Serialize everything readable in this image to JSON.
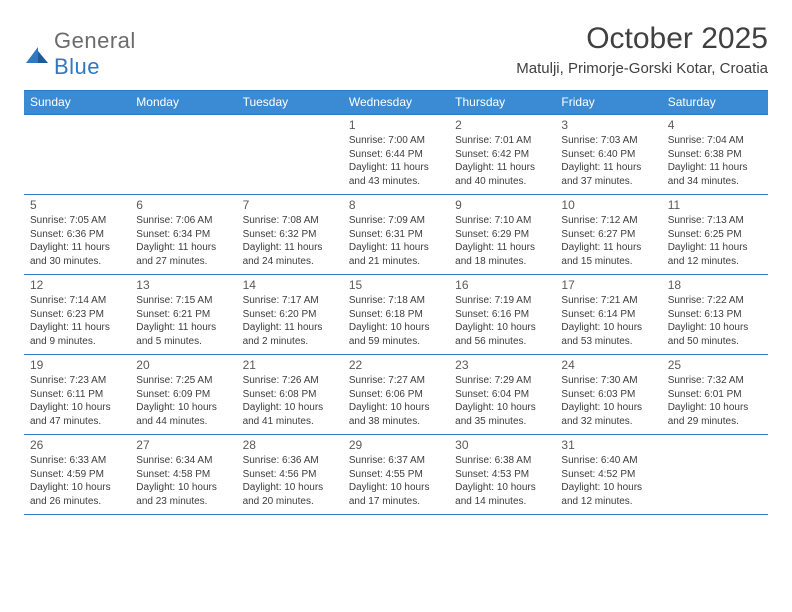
{
  "logo": {
    "text1": "General",
    "text2": "Blue"
  },
  "title": "October 2025",
  "subtitle": "Matulji, Primorje-Gorski Kotar, Croatia",
  "colors": {
    "header_bg": "#3b8bd4",
    "rule": "#2f78c2",
    "logo_gray": "#6b6b6b",
    "logo_blue": "#2f78c2",
    "text_dark": "#404040",
    "cell_text": "#3d3d3d"
  },
  "weekdays": [
    "Sunday",
    "Monday",
    "Tuesday",
    "Wednesday",
    "Thursday",
    "Friday",
    "Saturday"
  ],
  "weeks": [
    [
      {
        "day": "",
        "sunrise": "",
        "sunset": "",
        "daylight": ""
      },
      {
        "day": "",
        "sunrise": "",
        "sunset": "",
        "daylight": ""
      },
      {
        "day": "",
        "sunrise": "",
        "sunset": "",
        "daylight": ""
      },
      {
        "day": "1",
        "sunrise": "Sunrise: 7:00 AM",
        "sunset": "Sunset: 6:44 PM",
        "daylight": "Daylight: 11 hours and 43 minutes."
      },
      {
        "day": "2",
        "sunrise": "Sunrise: 7:01 AM",
        "sunset": "Sunset: 6:42 PM",
        "daylight": "Daylight: 11 hours and 40 minutes."
      },
      {
        "day": "3",
        "sunrise": "Sunrise: 7:03 AM",
        "sunset": "Sunset: 6:40 PM",
        "daylight": "Daylight: 11 hours and 37 minutes."
      },
      {
        "day": "4",
        "sunrise": "Sunrise: 7:04 AM",
        "sunset": "Sunset: 6:38 PM",
        "daylight": "Daylight: 11 hours and 34 minutes."
      }
    ],
    [
      {
        "day": "5",
        "sunrise": "Sunrise: 7:05 AM",
        "sunset": "Sunset: 6:36 PM",
        "daylight": "Daylight: 11 hours and 30 minutes."
      },
      {
        "day": "6",
        "sunrise": "Sunrise: 7:06 AM",
        "sunset": "Sunset: 6:34 PM",
        "daylight": "Daylight: 11 hours and 27 minutes."
      },
      {
        "day": "7",
        "sunrise": "Sunrise: 7:08 AM",
        "sunset": "Sunset: 6:32 PM",
        "daylight": "Daylight: 11 hours and 24 minutes."
      },
      {
        "day": "8",
        "sunrise": "Sunrise: 7:09 AM",
        "sunset": "Sunset: 6:31 PM",
        "daylight": "Daylight: 11 hours and 21 minutes."
      },
      {
        "day": "9",
        "sunrise": "Sunrise: 7:10 AM",
        "sunset": "Sunset: 6:29 PM",
        "daylight": "Daylight: 11 hours and 18 minutes."
      },
      {
        "day": "10",
        "sunrise": "Sunrise: 7:12 AM",
        "sunset": "Sunset: 6:27 PM",
        "daylight": "Daylight: 11 hours and 15 minutes."
      },
      {
        "day": "11",
        "sunrise": "Sunrise: 7:13 AM",
        "sunset": "Sunset: 6:25 PM",
        "daylight": "Daylight: 11 hours and 12 minutes."
      }
    ],
    [
      {
        "day": "12",
        "sunrise": "Sunrise: 7:14 AM",
        "sunset": "Sunset: 6:23 PM",
        "daylight": "Daylight: 11 hours and 9 minutes."
      },
      {
        "day": "13",
        "sunrise": "Sunrise: 7:15 AM",
        "sunset": "Sunset: 6:21 PM",
        "daylight": "Daylight: 11 hours and 5 minutes."
      },
      {
        "day": "14",
        "sunrise": "Sunrise: 7:17 AM",
        "sunset": "Sunset: 6:20 PM",
        "daylight": "Daylight: 11 hours and 2 minutes."
      },
      {
        "day": "15",
        "sunrise": "Sunrise: 7:18 AM",
        "sunset": "Sunset: 6:18 PM",
        "daylight": "Daylight: 10 hours and 59 minutes."
      },
      {
        "day": "16",
        "sunrise": "Sunrise: 7:19 AM",
        "sunset": "Sunset: 6:16 PM",
        "daylight": "Daylight: 10 hours and 56 minutes."
      },
      {
        "day": "17",
        "sunrise": "Sunrise: 7:21 AM",
        "sunset": "Sunset: 6:14 PM",
        "daylight": "Daylight: 10 hours and 53 minutes."
      },
      {
        "day": "18",
        "sunrise": "Sunrise: 7:22 AM",
        "sunset": "Sunset: 6:13 PM",
        "daylight": "Daylight: 10 hours and 50 minutes."
      }
    ],
    [
      {
        "day": "19",
        "sunrise": "Sunrise: 7:23 AM",
        "sunset": "Sunset: 6:11 PM",
        "daylight": "Daylight: 10 hours and 47 minutes."
      },
      {
        "day": "20",
        "sunrise": "Sunrise: 7:25 AM",
        "sunset": "Sunset: 6:09 PM",
        "daylight": "Daylight: 10 hours and 44 minutes."
      },
      {
        "day": "21",
        "sunrise": "Sunrise: 7:26 AM",
        "sunset": "Sunset: 6:08 PM",
        "daylight": "Daylight: 10 hours and 41 minutes."
      },
      {
        "day": "22",
        "sunrise": "Sunrise: 7:27 AM",
        "sunset": "Sunset: 6:06 PM",
        "daylight": "Daylight: 10 hours and 38 minutes."
      },
      {
        "day": "23",
        "sunrise": "Sunrise: 7:29 AM",
        "sunset": "Sunset: 6:04 PM",
        "daylight": "Daylight: 10 hours and 35 minutes."
      },
      {
        "day": "24",
        "sunrise": "Sunrise: 7:30 AM",
        "sunset": "Sunset: 6:03 PM",
        "daylight": "Daylight: 10 hours and 32 minutes."
      },
      {
        "day": "25",
        "sunrise": "Sunrise: 7:32 AM",
        "sunset": "Sunset: 6:01 PM",
        "daylight": "Daylight: 10 hours and 29 minutes."
      }
    ],
    [
      {
        "day": "26",
        "sunrise": "Sunrise: 6:33 AM",
        "sunset": "Sunset: 4:59 PM",
        "daylight": "Daylight: 10 hours and 26 minutes."
      },
      {
        "day": "27",
        "sunrise": "Sunrise: 6:34 AM",
        "sunset": "Sunset: 4:58 PM",
        "daylight": "Daylight: 10 hours and 23 minutes."
      },
      {
        "day": "28",
        "sunrise": "Sunrise: 6:36 AM",
        "sunset": "Sunset: 4:56 PM",
        "daylight": "Daylight: 10 hours and 20 minutes."
      },
      {
        "day": "29",
        "sunrise": "Sunrise: 6:37 AM",
        "sunset": "Sunset: 4:55 PM",
        "daylight": "Daylight: 10 hours and 17 minutes."
      },
      {
        "day": "30",
        "sunrise": "Sunrise: 6:38 AM",
        "sunset": "Sunset: 4:53 PM",
        "daylight": "Daylight: 10 hours and 14 minutes."
      },
      {
        "day": "31",
        "sunrise": "Sunrise: 6:40 AM",
        "sunset": "Sunset: 4:52 PM",
        "daylight": "Daylight: 10 hours and 12 minutes."
      },
      {
        "day": "",
        "sunrise": "",
        "sunset": "",
        "daylight": ""
      }
    ]
  ]
}
